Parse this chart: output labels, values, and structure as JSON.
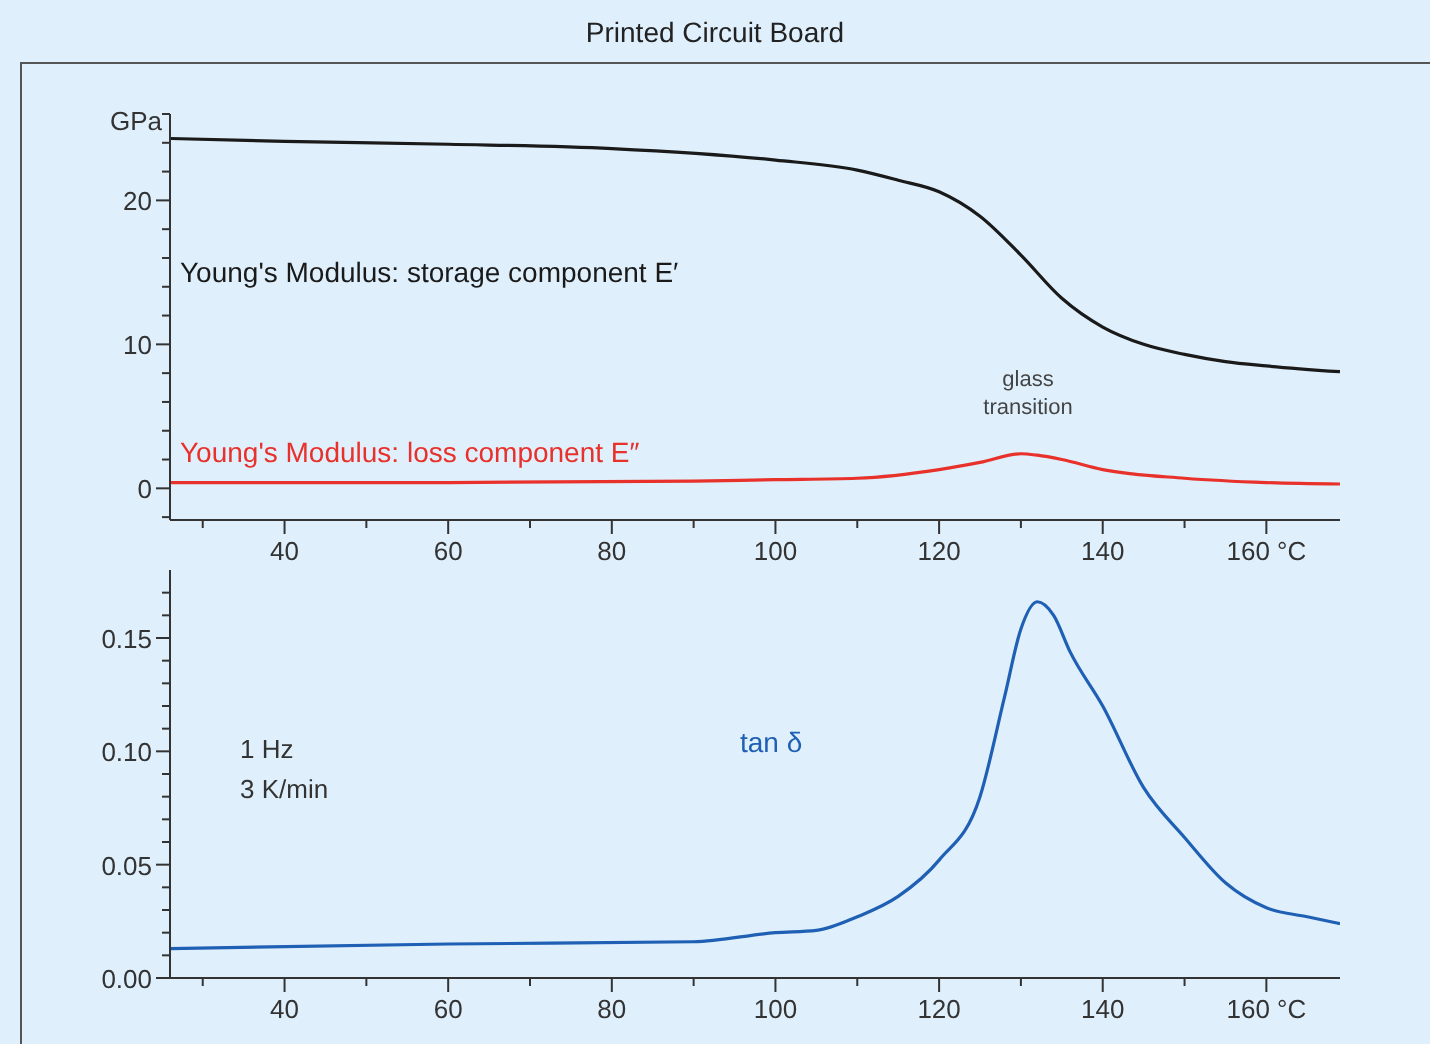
{
  "chart_data": [
    {
      "type": "line",
      "title": "Printed Circuit Board",
      "ylabel": "GPa",
      "xlim": [
        26,
        169
      ],
      "ylim": [
        -2.2,
        26
      ],
      "xticks": [
        {
          "value": 30,
          "label": null
        },
        40,
        {
          "value": 50,
          "label": null
        },
        60,
        {
          "value": 70,
          "label": null
        },
        80,
        {
          "value": 90,
          "label": null
        },
        100,
        {
          "value": 110,
          "label": null
        },
        120,
        {
          "value": 130,
          "label": null
        },
        140,
        {
          "value": 150,
          "label": null
        },
        {
          "value": 160,
          "label": "160 °C"
        }
      ],
      "yticks": [
        {
          "value": -2,
          "label": null
        },
        0,
        {
          "value": 2,
          "label": null
        },
        {
          "value": 4,
          "label": null
        },
        {
          "value": 6,
          "label": null
        },
        {
          "value": 8,
          "label": null
        },
        10,
        {
          "value": 12,
          "label": null
        },
        {
          "value": 14,
          "label": null
        },
        {
          "value": 16,
          "label": null
        },
        {
          "value": 18,
          "label": null
        },
        20,
        {
          "value": 22,
          "label": null
        },
        {
          "value": 24,
          "label": null
        },
        {
          "value": 26,
          "label": null
        }
      ],
      "series": [
        {
          "name": "Young's Modulus: storage component E′",
          "color": "#1a1a1a",
          "x": [
            26,
            40,
            60,
            80,
            100,
            110,
            115,
            120,
            125,
            130,
            135,
            140,
            145,
            150,
            155,
            160,
            169
          ],
          "values": [
            24.3,
            24.1,
            23.9,
            23.6,
            22.8,
            22.1,
            21.4,
            20.6,
            18.9,
            16.2,
            13.2,
            11.2,
            10,
            9.3,
            8.8,
            8.5,
            8.1
          ]
        },
        {
          "name": "Young's Modulus: loss component E″",
          "color": "#e8312a",
          "x": [
            26,
            60,
            90,
            100,
            110,
            120,
            125,
            130,
            132,
            135,
            140,
            150,
            160,
            169
          ],
          "values": [
            0.4,
            0.4,
            0.5,
            0.6,
            0.7,
            1.3,
            1.8,
            2.4,
            2.3,
            2,
            1.3,
            0.7,
            0.4,
            0.3
          ]
        }
      ],
      "annotations": [
        "glass transition"
      ],
      "grid": false,
      "legend": false,
      "marker": "none",
      "line_style": "solid"
    },
    {
      "type": "line",
      "xlim": [
        26,
        169
      ],
      "ylim": [
        0,
        0.18
      ],
      "xticks": [
        {
          "value": 30,
          "label": null
        },
        40,
        {
          "value": 50,
          "label": null
        },
        60,
        {
          "value": 70,
          "label": null
        },
        80,
        {
          "value": 90,
          "label": null
        },
        100,
        {
          "value": 110,
          "label": null
        },
        120,
        {
          "value": 130,
          "label": null
        },
        140,
        {
          "value": 150,
          "label": null
        },
        {
          "value": 160,
          "label": "160 °C"
        }
      ],
      "yticks": [
        {
          "value": 0,
          "label": "0.00"
        },
        {
          "value": 0.01,
          "label": null
        },
        {
          "value": 0.02,
          "label": null
        },
        {
          "value": 0.03,
          "label": null
        },
        {
          "value": 0.04,
          "label": null
        },
        0.05,
        {
          "value": 0.06,
          "label": null
        },
        {
          "value": 0.07,
          "label": null
        },
        {
          "value": 0.08,
          "label": null
        },
        {
          "value": 0.09,
          "label": null
        },
        {
          "value": 0.1,
          "label": "0.10"
        },
        {
          "value": 0.11,
          "label": null
        },
        {
          "value": 0.12,
          "label": null
        },
        {
          "value": 0.13,
          "label": null
        },
        {
          "value": 0.14,
          "label": null
        },
        0.15,
        {
          "value": 0.16,
          "label": null
        },
        {
          "value": 0.17,
          "label": null
        }
      ],
      "series": [
        {
          "name": "tan δ",
          "color": "#1f5fb4",
          "x": [
            26,
            60,
            90,
            100,
            105,
            110,
            115,
            120,
            125,
            128,
            130,
            132,
            134,
            136,
            140,
            145,
            150,
            155,
            160,
            165,
            169
          ],
          "values": [
            0.013,
            0.015,
            0.016,
            0.02,
            0.021,
            0.027,
            0.036,
            0.052,
            0.08,
            0.124,
            0.154,
            0.166,
            0.16,
            0.144,
            0.12,
            0.084,
            0.062,
            0.042,
            0.031,
            0.027,
            0.024
          ]
        }
      ],
      "annotations": [
        "1 Hz",
        "3 K/min"
      ],
      "grid": false,
      "legend": false,
      "marker": "none",
      "line_style": "solid"
    }
  ]
}
